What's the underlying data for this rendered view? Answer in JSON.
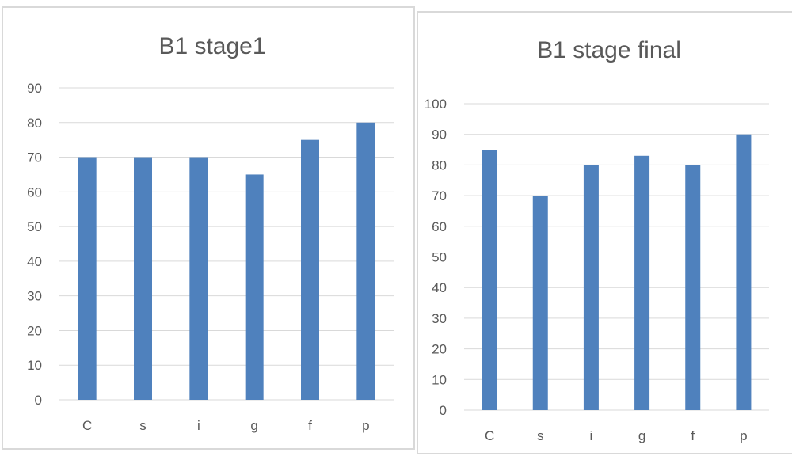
{
  "chart_data": [
    {
      "type": "bar",
      "title": "B1 stage1",
      "categories": [
        "C",
        "s",
        "i",
        "g",
        "f",
        "p"
      ],
      "values": [
        70,
        70,
        70,
        65,
        75,
        80
      ],
      "ylim": [
        0,
        90
      ],
      "yticks": [
        0,
        10,
        20,
        30,
        40,
        50,
        60,
        70,
        80,
        90
      ],
      "xlabel": "",
      "ylabel": "",
      "grid": true,
      "color": "#4f81bd"
    },
    {
      "type": "bar",
      "title": "B1 stage final",
      "categories": [
        "C",
        "s",
        "i",
        "g",
        "f",
        "p"
      ],
      "values": [
        85,
        70,
        80,
        83,
        80,
        90
      ],
      "ylim": [
        0,
        100
      ],
      "yticks": [
        0,
        10,
        20,
        30,
        40,
        50,
        60,
        70,
        80,
        90,
        100
      ],
      "xlabel": "",
      "ylabel": "",
      "grid": true,
      "color": "#4f81bd"
    }
  ]
}
